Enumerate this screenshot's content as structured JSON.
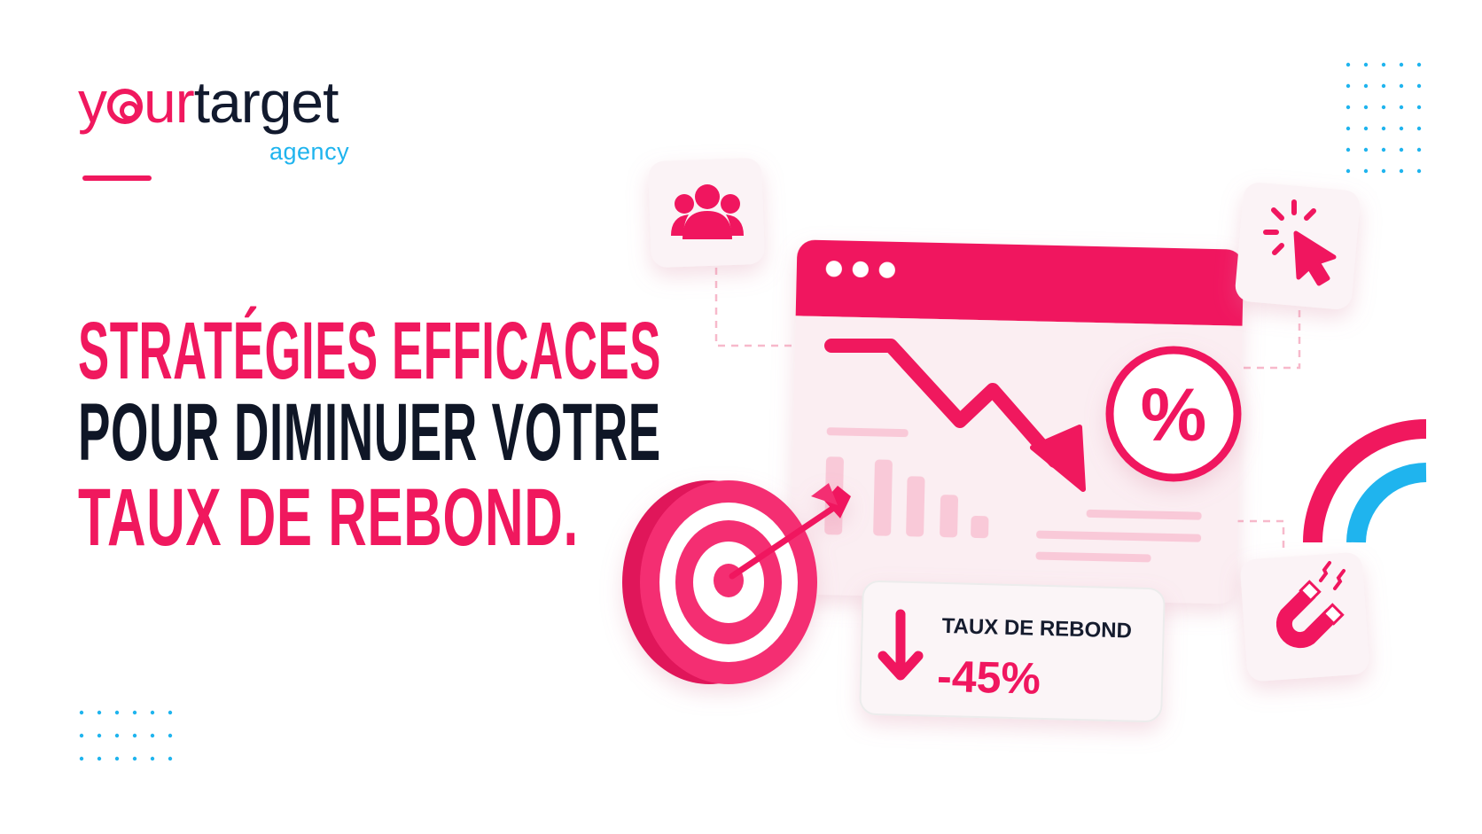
{
  "logo": {
    "part1": "y",
    "part2": "ur",
    "part3": "target",
    "sub": "agency"
  },
  "headline": {
    "line1": "STRATÉGIES EFFICACES",
    "line2": "POUR DIMINUER VOTRE",
    "line3": "TAUX DE REBOND."
  },
  "stat_card": {
    "label": "TAUX DE REBOND",
    "value": "-45%",
    "icon": "arrow-down-icon"
  },
  "percent_badge": {
    "symbol": "%"
  },
  "icons": [
    "users-icon",
    "cursor-click-icon",
    "magnet-icon",
    "target-icon",
    "browser-window-icon",
    "trend-down-icon"
  ],
  "colors": {
    "accent": "#f0185e",
    "dark": "#121a2e",
    "blue": "#1fb4ee",
    "soft_pink": "#f9c9d8"
  }
}
